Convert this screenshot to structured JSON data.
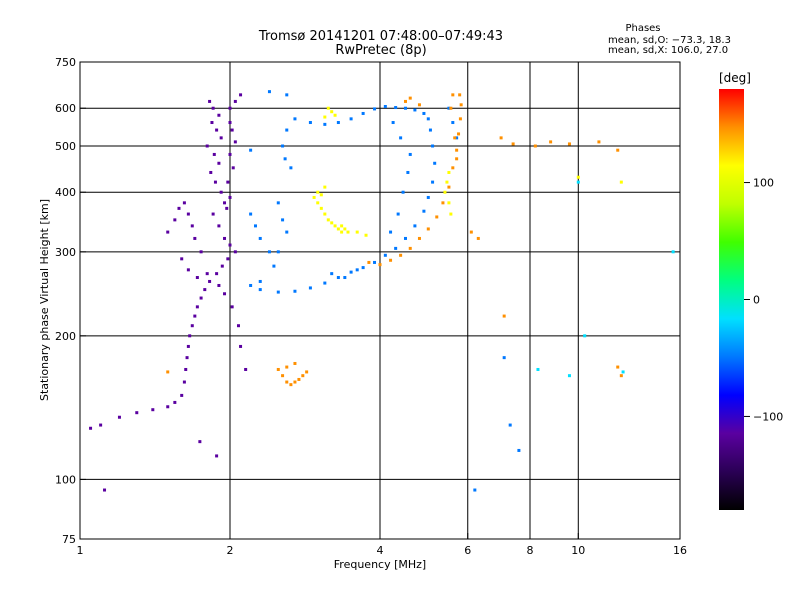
{
  "chart_data": {
    "type": "scatter",
    "title": "Tromsø 20141201 07:48:00–07:49:43",
    "subtitle": "RwPretec (8p)",
    "xlabel": "Frequency [MHz]",
    "ylabel": "Stationary phase Virtual Height [km]",
    "xscale": "log",
    "yscale": "log",
    "xlim": [
      1,
      16
    ],
    "ylim": [
      75,
      750
    ],
    "x_ticks": [
      1,
      2,
      4,
      6,
      8,
      10,
      16
    ],
    "y_ticks": [
      75,
      100,
      200,
      300,
      400,
      500,
      600,
      750
    ],
    "x_tick_labels": [
      "1",
      "2",
      "4",
      "6",
      "8",
      "10",
      "16"
    ],
    "y_tick_labels": [
      "75",
      "100",
      "200",
      "300",
      "400",
      "500",
      "600",
      "750"
    ],
    "grid_x": [
      2,
      4,
      6,
      8,
      10
    ],
    "grid_y": [
      100,
      200,
      300,
      400,
      500,
      600
    ],
    "grid": true,
    "legend": {
      "title": "Phases",
      "lines": [
        "mean, sd,O: −73.3, 18.3",
        "mean, sd,X: 106.0, 27.0"
      ]
    },
    "colorbar": {
      "label": "[deg]",
      "min": -180,
      "max": 180,
      "ticks": [
        100,
        0,
        -100
      ],
      "tick_labels": [
        "100",
        "0",
        "−100"
      ],
      "colors": [
        "#000000",
        "#2a0055",
        "#5a00a0",
        "#0000ff",
        "#0078ff",
        "#00e0ff",
        "#00ff80",
        "#40ff00",
        "#c0ff00",
        "#ffff00",
        "#ff9000",
        "#ff0000"
      ]
    },
    "series": [
      {
        "points": [
          [
            1.82,
            620
          ],
          [
            1.85,
            600
          ],
          [
            1.9,
            580
          ],
          [
            1.84,
            560
          ],
          [
            1.88,
            540
          ],
          [
            1.92,
            520
          ],
          [
            1.8,
            500
          ],
          [
            1.86,
            480
          ],
          [
            1.9,
            460
          ],
          [
            1.83,
            440
          ],
          [
            1.87,
            420
          ],
          [
            1.92,
            400
          ],
          [
            1.95,
            380
          ],
          [
            1.85,
            360
          ],
          [
            1.9,
            340
          ],
          [
            1.95,
            320
          ],
          [
            2.0,
            310
          ],
          [
            2.05,
            300
          ],
          [
            1.98,
            290
          ],
          [
            1.93,
            280
          ],
          [
            1.88,
            270
          ],
          [
            1.82,
            260
          ],
          [
            1.78,
            250
          ],
          [
            1.75,
            240
          ],
          [
            1.72,
            230
          ],
          [
            1.7,
            220
          ],
          [
            1.68,
            210
          ],
          [
            1.66,
            200
          ],
          [
            1.65,
            190
          ],
          [
            1.64,
            180
          ],
          [
            1.63,
            170
          ],
          [
            1.62,
            160
          ],
          [
            1.6,
            150
          ],
          [
            1.55,
            145
          ],
          [
            1.5,
            142
          ],
          [
            1.4,
            140
          ],
          [
            1.3,
            138
          ],
          [
            1.2,
            135
          ],
          [
            1.1,
            130
          ],
          [
            1.05,
            128
          ],
          [
            2.1,
            640
          ],
          [
            2.05,
            620
          ],
          [
            2.0,
            600
          ],
          [
            2.0,
            560
          ],
          [
            2.02,
            540
          ],
          [
            2.05,
            510
          ],
          [
            2.0,
            480
          ],
          [
            2.03,
            450
          ],
          [
            1.98,
            420
          ],
          [
            2.0,
            390
          ],
          [
            1.97,
            370
          ],
          [
            1.75,
            300
          ],
          [
            1.7,
            320
          ],
          [
            1.68,
            340
          ],
          [
            1.65,
            360
          ],
          [
            1.62,
            380
          ],
          [
            1.58,
            370
          ],
          [
            1.55,
            350
          ],
          [
            1.5,
            330
          ],
          [
            1.6,
            290
          ],
          [
            1.65,
            275
          ],
          [
            1.72,
            265
          ],
          [
            1.8,
            270
          ],
          [
            1.9,
            255
          ],
          [
            1.95,
            245
          ],
          [
            2.02,
            230
          ],
          [
            2.08,
            210
          ],
          [
            2.1,
            190
          ],
          [
            2.15,
            170
          ],
          [
            1.74,
            120
          ],
          [
            1.88,
            112
          ],
          [
            1.12,
            95
          ]
        ],
        "phase": -100
      },
      {
        "points": [
          [
            2.2,
            255
          ],
          [
            2.3,
            250
          ],
          [
            2.5,
            247
          ],
          [
            2.7,
            248
          ],
          [
            2.9,
            252
          ],
          [
            3.1,
            258
          ],
          [
            3.3,
            265
          ],
          [
            3.5,
            272
          ],
          [
            3.7,
            278
          ],
          [
            3.9,
            285
          ],
          [
            4.1,
            295
          ],
          [
            4.3,
            305
          ],
          [
            4.5,
            320
          ],
          [
            4.7,
            340
          ],
          [
            4.9,
            365
          ],
          [
            5.0,
            390
          ],
          [
            5.1,
            420
          ],
          [
            5.15,
            460
          ],
          [
            5.1,
            500
          ],
          [
            5.05,
            540
          ],
          [
            5.0,
            570
          ],
          [
            4.9,
            585
          ],
          [
            4.7,
            595
          ],
          [
            4.5,
            600
          ],
          [
            4.3,
            602
          ],
          [
            4.1,
            605
          ],
          [
            3.9,
            598
          ],
          [
            3.7,
            585
          ],
          [
            3.5,
            570
          ],
          [
            3.3,
            560
          ],
          [
            3.1,
            555
          ],
          [
            2.9,
            560
          ],
          [
            2.7,
            570
          ],
          [
            2.6,
            540
          ],
          [
            2.55,
            500
          ],
          [
            2.58,
            470
          ],
          [
            2.65,
            450
          ],
          [
            2.5,
            380
          ],
          [
            2.55,
            350
          ],
          [
            2.6,
            330
          ],
          [
            2.5,
            300
          ],
          [
            2.45,
            280
          ],
          [
            2.3,
            260
          ],
          [
            2.2,
            360
          ],
          [
            2.25,
            340
          ],
          [
            2.3,
            320
          ],
          [
            2.4,
            300
          ],
          [
            3.2,
            270
          ],
          [
            3.4,
            265
          ],
          [
            3.6,
            275
          ],
          [
            4.2,
            330
          ],
          [
            4.35,
            360
          ],
          [
            4.45,
            400
          ],
          [
            4.55,
            440
          ],
          [
            4.6,
            480
          ],
          [
            4.4,
            520
          ],
          [
            4.25,
            560
          ],
          [
            5.5,
            600
          ],
          [
            5.6,
            560
          ],
          [
            5.7,
            520
          ],
          [
            2.4,
            650
          ],
          [
            2.6,
            640
          ],
          [
            2.2,
            490
          ],
          [
            6.2,
            95
          ],
          [
            7.1,
            180
          ],
          [
            7.3,
            130
          ],
          [
            7.6,
            115
          ]
        ],
        "phase": -60
      },
      {
        "points": [
          [
            3.0,
            380
          ],
          [
            3.05,
            370
          ],
          [
            3.1,
            360
          ],
          [
            3.15,
            350
          ],
          [
            3.2,
            345
          ],
          [
            3.25,
            340
          ],
          [
            3.3,
            335
          ],
          [
            3.35,
            330
          ],
          [
            3.4,
            335
          ],
          [
            3.45,
            330
          ],
          [
            3.0,
            400
          ],
          [
            3.05,
            395
          ],
          [
            2.95,
            390
          ],
          [
            3.1,
            410
          ],
          [
            3.15,
            600
          ],
          [
            3.2,
            590
          ],
          [
            3.25,
            580
          ],
          [
            3.1,
            575
          ],
          [
            5.4,
            400
          ],
          [
            5.45,
            420
          ],
          [
            5.5,
            440
          ],
          [
            5.5,
            380
          ],
          [
            5.55,
            360
          ],
          [
            3.35,
            340
          ],
          [
            3.6,
            330
          ],
          [
            3.75,
            325
          ],
          [
            10.0,
            430
          ],
          [
            12.2,
            420
          ]
        ],
        "phase": 100
      },
      {
        "points": [
          [
            3.8,
            285
          ],
          [
            4.0,
            282
          ],
          [
            4.2,
            288
          ],
          [
            4.4,
            295
          ],
          [
            4.6,
            305
          ],
          [
            4.8,
            320
          ],
          [
            5.0,
            335
          ],
          [
            5.2,
            355
          ],
          [
            5.35,
            380
          ],
          [
            5.5,
            410
          ],
          [
            5.6,
            450
          ],
          [
            5.7,
            490
          ],
          [
            5.75,
            530
          ],
          [
            5.8,
            570
          ],
          [
            5.82,
            610
          ],
          [
            5.78,
            640
          ],
          [
            5.6,
            640
          ],
          [
            5.55,
            600
          ],
          [
            5.65,
            520
          ],
          [
            5.7,
            470
          ],
          [
            4.5,
            620
          ],
          [
            4.8,
            610
          ],
          [
            4.6,
            630
          ],
          [
            2.5,
            170
          ],
          [
            2.55,
            165
          ],
          [
            2.6,
            160
          ],
          [
            2.65,
            158
          ],
          [
            2.7,
            160
          ],
          [
            2.75,
            162
          ],
          [
            2.8,
            165
          ],
          [
            2.85,
            168
          ],
          [
            2.6,
            172
          ],
          [
            2.7,
            175
          ],
          [
            1.5,
            168
          ],
          [
            7.0,
            520
          ],
          [
            7.4,
            505
          ],
          [
            8.2,
            500
          ],
          [
            8.8,
            510
          ],
          [
            9.6,
            505
          ],
          [
            11.0,
            510
          ],
          [
            12.0,
            490
          ],
          [
            6.1,
            330
          ],
          [
            6.3,
            320
          ],
          [
            7.1,
            220
          ],
          [
            12.2,
            165
          ],
          [
            12.0,
            172
          ]
        ],
        "phase": 150
      },
      {
        "points": [
          [
            15.5,
            300
          ],
          [
            10.3,
            200
          ],
          [
            8.3,
            170
          ],
          [
            9.6,
            165
          ],
          [
            10.0,
            420
          ],
          [
            12.3,
            168
          ]
        ],
        "phase": -10
      }
    ]
  }
}
